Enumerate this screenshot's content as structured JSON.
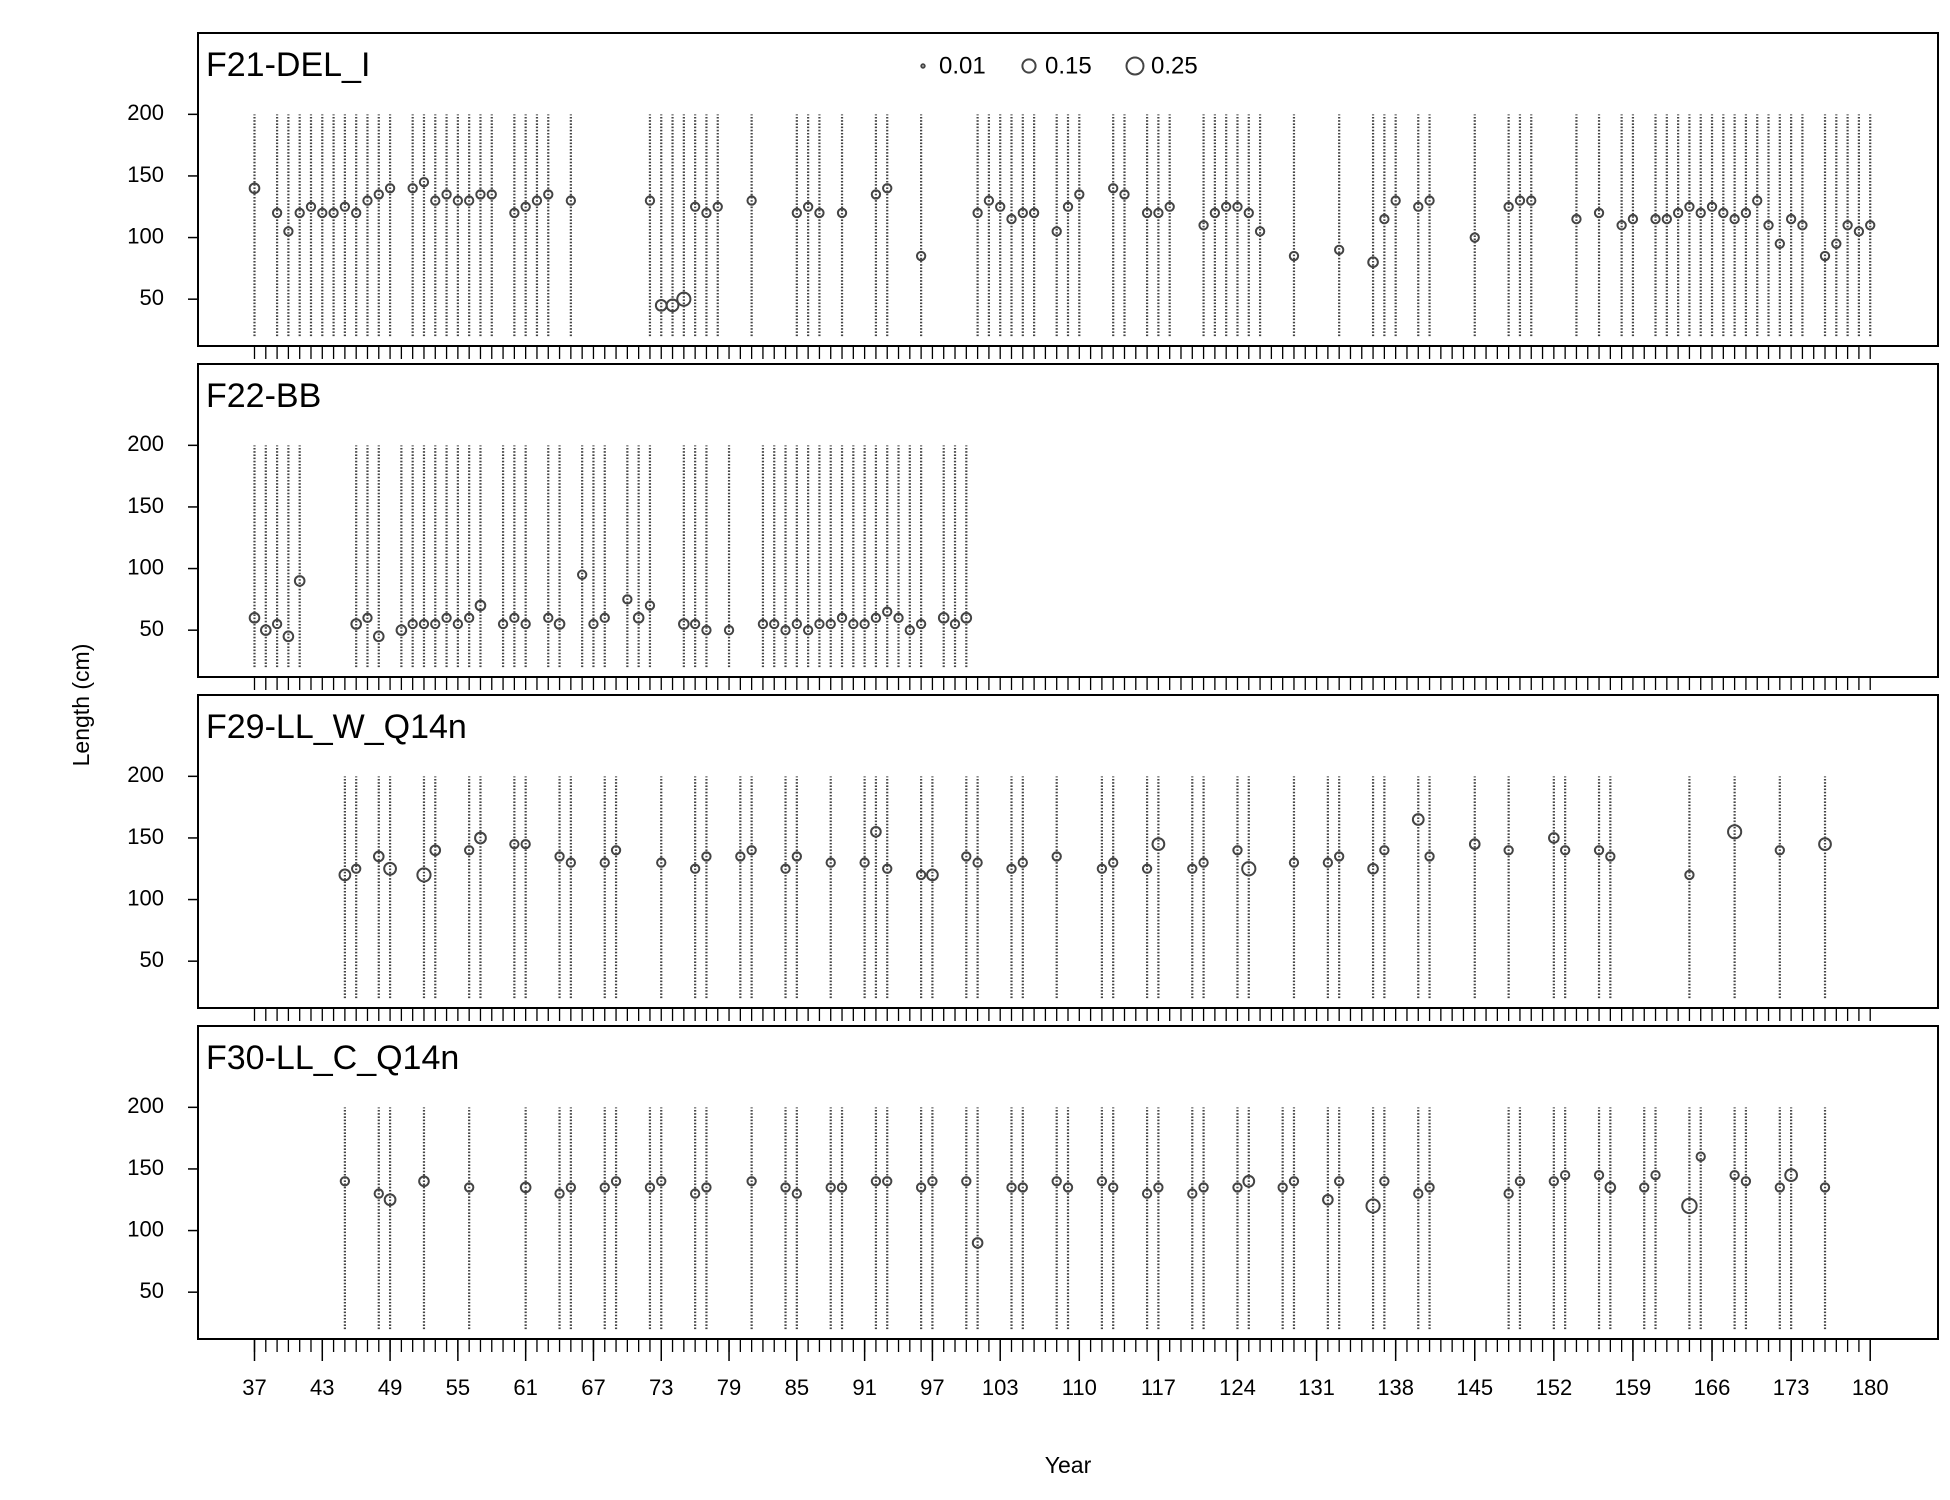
{
  "xlabel": "Year",
  "ylabel": "Length (cm)",
  "chart_data": [
    {
      "type": "scatter",
      "title": "F21-DEL_I",
      "color": "#444444",
      "legend_sizes": [
        0.01,
        0.15,
        0.25
      ],
      "xlim": [
        32,
        186
      ],
      "ylim": [
        12,
        266
      ],
      "yticks": [
        50,
        100,
        150,
        200
      ],
      "length_bins": [
        20,
        200
      ],
      "x": [
        37,
        39,
        40,
        41,
        42,
        43,
        44,
        45,
        46,
        47,
        48,
        49,
        51,
        52,
        53,
        54,
        55,
        56,
        57,
        58,
        60,
        61,
        62,
        63,
        65,
        72,
        73,
        74,
        75,
        76,
        77,
        78,
        81,
        85,
        86,
        87,
        89,
        92,
        93,
        96,
        101,
        102,
        103,
        104,
        105,
        106,
        108,
        109,
        110,
        113,
        114,
        116,
        117,
        118,
        121,
        122,
        123,
        124,
        125,
        126,
        129,
        133,
        136,
        137,
        138,
        140,
        141,
        145,
        148,
        149,
        150,
        154,
        156,
        158,
        159,
        161,
        162,
        163,
        164,
        165,
        166,
        167,
        168,
        169,
        170,
        171,
        172,
        173,
        174,
        176,
        177,
        178,
        179,
        180
      ],
      "y": [
        140,
        120,
        105,
        120,
        125,
        120,
        120,
        125,
        120,
        130,
        135,
        140,
        140,
        145,
        130,
        135,
        130,
        130,
        135,
        135,
        120,
        125,
        130,
        135,
        130,
        130,
        45,
        45,
        50,
        125,
        120,
        125,
        130,
        120,
        125,
        120,
        120,
        135,
        140,
        85,
        120,
        130,
        125,
        115,
        120,
        120,
        105,
        125,
        135,
        140,
        135,
        120,
        120,
        125,
        110,
        120,
        125,
        125,
        120,
        105,
        85,
        90,
        80,
        115,
        130,
        125,
        130,
        100,
        125,
        130,
        130,
        115,
        120,
        110,
        115,
        115,
        115,
        120,
        125,
        120,
        125,
        120,
        115,
        120,
        130,
        110,
        95,
        115,
        110,
        85,
        95,
        110,
        105,
        110
      ],
      "size": [
        0.08,
        0.06,
        0.06,
        0.06,
        0.06,
        0.06,
        0.06,
        0.06,
        0.06,
        0.06,
        0.06,
        0.06,
        0.06,
        0.06,
        0.06,
        0.06,
        0.06,
        0.06,
        0.06,
        0.06,
        0.06,
        0.06,
        0.06,
        0.06,
        0.06,
        0.06,
        0.1,
        0.12,
        0.15,
        0.06,
        0.06,
        0.06,
        0.06,
        0.06,
        0.06,
        0.06,
        0.06,
        0.06,
        0.06,
        0.06,
        0.06,
        0.06,
        0.06,
        0.06,
        0.06,
        0.06,
        0.06,
        0.06,
        0.06,
        0.06,
        0.06,
        0.06,
        0.06,
        0.06,
        0.06,
        0.06,
        0.06,
        0.06,
        0.06,
        0.06,
        0.06,
        0.06,
        0.08,
        0.06,
        0.06,
        0.06,
        0.06,
        0.06,
        0.06,
        0.06,
        0.06,
        0.06,
        0.06,
        0.06,
        0.06,
        0.06,
        0.06,
        0.06,
        0.06,
        0.06,
        0.06,
        0.06,
        0.06,
        0.06,
        0.06,
        0.06,
        0.06,
        0.06,
        0.06,
        0.06,
        0.06,
        0.06,
        0.06,
        0.06
      ]
    },
    {
      "type": "scatter",
      "title": "F22-BB",
      "color": "#444444",
      "xlim": [
        32,
        186
      ],
      "ylim": [
        12,
        266
      ],
      "yticks": [
        50,
        100,
        150,
        200
      ],
      "length_bins": [
        20,
        200
      ],
      "x": [
        37,
        38,
        39,
        40,
        41,
        46,
        47,
        48,
        50,
        51,
        52,
        53,
        54,
        55,
        56,
        57,
        59,
        60,
        61,
        63,
        64,
        66,
        67,
        68,
        70,
        71,
        72,
        75,
        76,
        77,
        79,
        82,
        83,
        84,
        85,
        86,
        87,
        88,
        89,
        90,
        91,
        92,
        93,
        94,
        95,
        96,
        98,
        99,
        100
      ],
      "y": [
        60,
        50,
        55,
        45,
        90,
        55,
        60,
        45,
        50,
        55,
        55,
        55,
        60,
        55,
        60,
        70,
        55,
        60,
        55,
        60,
        55,
        95,
        55,
        60,
        75,
        60,
        70,
        55,
        55,
        50,
        50,
        55,
        55,
        50,
        55,
        50,
        55,
        55,
        60,
        55,
        55,
        60,
        65,
        60,
        50,
        55,
        60,
        55,
        60
      ],
      "size": [
        0.08,
        0.08,
        0.06,
        0.08,
        0.08,
        0.08,
        0.06,
        0.08,
        0.08,
        0.06,
        0.06,
        0.06,
        0.06,
        0.06,
        0.06,
        0.08,
        0.06,
        0.06,
        0.06,
        0.06,
        0.08,
        0.06,
        0.06,
        0.06,
        0.06,
        0.08,
        0.06,
        0.08,
        0.06,
        0.06,
        0.06,
        0.06,
        0.06,
        0.06,
        0.06,
        0.06,
        0.06,
        0.06,
        0.06,
        0.06,
        0.06,
        0.06,
        0.06,
        0.06,
        0.06,
        0.06,
        0.08,
        0.06,
        0.08
      ]
    },
    {
      "type": "scatter",
      "title": "F29-LL_W_Q14n",
      "color": "#444444",
      "xlim": [
        32,
        186
      ],
      "ylim": [
        12,
        266
      ],
      "yticks": [
        50,
        100,
        150,
        200
      ],
      "length_bins": [
        20,
        200
      ],
      "x": [
        45,
        46,
        48,
        49,
        52,
        53,
        56,
        57,
        60,
        61,
        64,
        65,
        68,
        69,
        73,
        76,
        77,
        80,
        81,
        84,
        85,
        88,
        91,
        92,
        93,
        96,
        97,
        100,
        101,
        104,
        105,
        108,
        112,
        113,
        116,
        117,
        120,
        121,
        124,
        125,
        129,
        132,
        133,
        136,
        137,
        140,
        141,
        145,
        148,
        152,
        153,
        156,
        157,
        164,
        168,
        172,
        176
      ],
      "y": [
        120,
        125,
        135,
        125,
        120,
        140,
        140,
        150,
        145,
        145,
        135,
        130,
        130,
        140,
        130,
        125,
        135,
        135,
        140,
        125,
        135,
        130,
        130,
        155,
        125,
        120,
        120,
        135,
        130,
        125,
        130,
        135,
        125,
        130,
        125,
        145,
        125,
        130,
        140,
        125,
        130,
        130,
        135,
        125,
        140,
        165,
        135,
        145,
        140,
        150,
        140,
        140,
        135,
        120,
        155,
        140,
        145
      ],
      "size": [
        0.1,
        0.06,
        0.08,
        0.12,
        0.15,
        0.08,
        0.06,
        0.1,
        0.06,
        0.06,
        0.06,
        0.06,
        0.06,
        0.06,
        0.06,
        0.06,
        0.06,
        0.06,
        0.06,
        0.06,
        0.06,
        0.06,
        0.06,
        0.08,
        0.06,
        0.06,
        0.1,
        0.06,
        0.06,
        0.06,
        0.06,
        0.06,
        0.06,
        0.06,
        0.06,
        0.12,
        0.06,
        0.06,
        0.06,
        0.15,
        0.06,
        0.06,
        0.06,
        0.08,
        0.06,
        0.1,
        0.06,
        0.08,
        0.06,
        0.08,
        0.06,
        0.06,
        0.06,
        0.06,
        0.15,
        0.06,
        0.12
      ]
    },
    {
      "type": "scatter",
      "title": "F30-LL_C_Q14n",
      "color": "#444444",
      "xlim": [
        32,
        186
      ],
      "ylim": [
        12,
        266
      ],
      "yticks": [
        50,
        100,
        150,
        200
      ],
      "length_bins": [
        20,
        200
      ],
      "xticks": [
        37,
        43,
        49,
        55,
        61,
        67,
        73,
        79,
        85,
        91,
        97,
        103,
        110,
        117,
        124,
        131,
        138,
        145,
        152,
        159,
        166,
        173,
        180
      ],
      "x": [
        45,
        48,
        49,
        52,
        56,
        61,
        64,
        65,
        68,
        69,
        72,
        73,
        76,
        77,
        81,
        84,
        85,
        88,
        89,
        92,
        93,
        96,
        97,
        100,
        101,
        104,
        105,
        108,
        109,
        112,
        113,
        116,
        117,
        120,
        121,
        124,
        125,
        128,
        129,
        132,
        133,
        136,
        137,
        140,
        141,
        148,
        149,
        152,
        153,
        156,
        157,
        160,
        161,
        164,
        165,
        168,
        169,
        172,
        173,
        176
      ],
      "y": [
        140,
        130,
        125,
        140,
        135,
        135,
        130,
        135,
        135,
        140,
        135,
        140,
        130,
        135,
        140,
        135,
        130,
        135,
        135,
        140,
        140,
        135,
        140,
        140,
        90,
        135,
        135,
        140,
        135,
        140,
        135,
        130,
        135,
        130,
        135,
        135,
        140,
        135,
        140,
        125,
        140,
        120,
        140,
        130,
        135,
        130,
        140,
        140,
        145,
        145,
        135,
        135,
        145,
        120,
        160,
        145,
        140,
        135,
        145,
        135
      ],
      "size": [
        0.06,
        0.06,
        0.1,
        0.08,
        0.06,
        0.08,
        0.06,
        0.06,
        0.06,
        0.06,
        0.06,
        0.06,
        0.06,
        0.06,
        0.06,
        0.06,
        0.06,
        0.06,
        0.06,
        0.06,
        0.06,
        0.06,
        0.06,
        0.06,
        0.08,
        0.06,
        0.06,
        0.06,
        0.06,
        0.06,
        0.06,
        0.06,
        0.06,
        0.06,
        0.06,
        0.06,
        0.1,
        0.06,
        0.06,
        0.08,
        0.06,
        0.15,
        0.06,
        0.06,
        0.06,
        0.06,
        0.06,
        0.06,
        0.06,
        0.06,
        0.08,
        0.06,
        0.06,
        0.18,
        0.06,
        0.06,
        0.06,
        0.06,
        0.12,
        0.06
      ]
    }
  ]
}
